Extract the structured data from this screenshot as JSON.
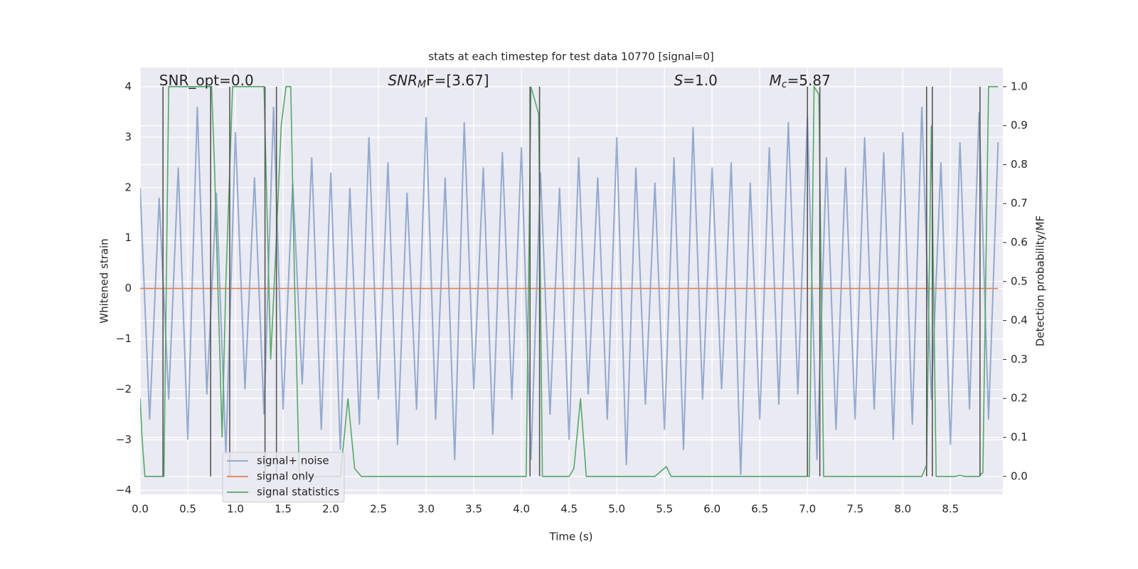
{
  "chart_data": {
    "type": "line",
    "title": "stats at each timestep for test data 10770 [signal=0]",
    "xlabel": "Time (s)",
    "ylabel": "Whitened strain",
    "y2label": "Detection probability/MF",
    "annotations": [
      {
        "base": "SNR_opt=0.0",
        "x": 0.2
      },
      {
        "base": "SNR",
        "sub": "M",
        "rest": "F=[3.67]",
        "x": 2.6
      },
      {
        "base": "S",
        "rest": "=1.0",
        "x": 5.6
      },
      {
        "base": "M",
        "sub": "c",
        "rest": "=5.87",
        "x": 6.6
      }
    ],
    "xlim": [
      0,
      9.05
    ],
    "ylim": [
      -4.08,
      4.38
    ],
    "y2lim": [
      -0.046,
      1.049
    ],
    "xticks": [
      {
        "value": 0,
        "label": "0.0"
      },
      0.5,
      {
        "value": 1,
        "label": "1.0"
      },
      1.5,
      {
        "value": 2,
        "label": "2.0"
      },
      2.5,
      {
        "value": 3,
        "label": "3.0"
      },
      3.5,
      {
        "value": 4,
        "label": "4.0"
      },
      4.5,
      {
        "value": 5,
        "label": "5.0"
      },
      5.5,
      {
        "value": 6,
        "label": "6.0"
      },
      6.5,
      {
        "value": 7,
        "label": "7.0"
      },
      7.5,
      {
        "value": 8,
        "label": "8.0"
      },
      8.5
    ],
    "yticks": [
      {
        "value": -4,
        "label": "−4"
      },
      {
        "value": -3,
        "label": "−3"
      },
      {
        "value": -2,
        "label": "−2"
      },
      {
        "value": -1,
        "label": "−1"
      },
      0,
      1,
      2,
      3,
      4
    ],
    "y2ticks": [
      {
        "value": 0,
        "label": "0.0"
      },
      0.1,
      0.2,
      0.3,
      0.4,
      0.5,
      0.6,
      0.7,
      0.8,
      0.9,
      {
        "value": 1,
        "label": "1.0"
      }
    ],
    "grid": true,
    "legend": "lower left",
    "series": [
      {
        "name": "signal+ noise",
        "color": "#4c72b0",
        "x": [
          0,
          0.1,
          0.2,
          0.3,
          0.4,
          0.5,
          0.6,
          0.7,
          0.8,
          0.9,
          1.0,
          1.1,
          1.2,
          1.3,
          1.4,
          1.5,
          1.6,
          1.7,
          1.8,
          1.9,
          2.0,
          2.1,
          2.2,
          2.3,
          2.4,
          2.5,
          2.6,
          2.7,
          2.8,
          2.9,
          3.0,
          3.1,
          3.2,
          3.3,
          3.4,
          3.5,
          3.6,
          3.7,
          3.8,
          3.9,
          4.0,
          4.1,
          4.2,
          4.3,
          4.4,
          4.5,
          4.6,
          4.7,
          4.8,
          4.9,
          5.0,
          5.1,
          5.2,
          5.3,
          5.4,
          5.5,
          5.6,
          5.7,
          5.8,
          5.9,
          6.0,
          6.1,
          6.2,
          6.3,
          6.4,
          6.5,
          6.6,
          6.7,
          6.8,
          6.9,
          7.0,
          7.1,
          7.2,
          7.3,
          7.4,
          7.5,
          7.6,
          7.7,
          7.8,
          7.9,
          8.0,
          8.1,
          8.2,
          8.3,
          8.4,
          8.5,
          8.6,
          8.7,
          8.8,
          8.9,
          9.0
        ],
        "values": [
          2.0,
          -2.6,
          1.8,
          -2.2,
          2.4,
          -3.0,
          3.6,
          -2.1,
          1.9,
          -3.3,
          3.1,
          -2.0,
          2.2,
          -2.5,
          3.6,
          -2.4,
          2.1,
          -1.9,
          2.6,
          -2.8,
          2.3,
          -3.2,
          2.0,
          -2.7,
          3.0,
          -2.2,
          2.5,
          -3.1,
          1.9,
          -2.4,
          3.4,
          -2.6,
          2.2,
          -3.4,
          3.3,
          -2.0,
          2.4,
          -2.9,
          2.7,
          -2.2,
          2.8,
          -3.4,
          2.3,
          -2.5,
          2.0,
          -3.0,
          2.6,
          -2.1,
          2.2,
          -2.6,
          3.0,
          -3.5,
          2.4,
          -2.3,
          2.1,
          -2.8,
          2.6,
          -3.2,
          3.2,
          -2.2,
          2.4,
          -2.0,
          2.5,
          -3.7,
          2.1,
          -2.6,
          2.8,
          -2.3,
          3.3,
          -2.1,
          3.4,
          -3.4,
          2.6,
          -2.8,
          2.4,
          -2.6,
          3.0,
          -2.4,
          2.7,
          -3.0,
          3.1,
          -2.7,
          3.6,
          -2.2,
          2.5,
          -3.1,
          2.9,
          -2.4,
          3.5,
          -2.6,
          2.9
        ]
      },
      {
        "name": "signal only",
        "color": "#dd8452",
        "x": [
          0,
          9.0
        ],
        "values": [
          0,
          0
        ]
      },
      {
        "name": "signal statistics",
        "color": "#55a868",
        "axis": "y2",
        "x": [
          0,
          0.02,
          0.05,
          0.25,
          0.3,
          0.7,
          0.75,
          0.78,
          0.86,
          0.9,
          0.97,
          1.3,
          1.37,
          1.42,
          1.48,
          1.53,
          1.58,
          1.62,
          1.67,
          2.1,
          2.18,
          2.25,
          2.32,
          4.05,
          4.1,
          4.18,
          4.22,
          4.5,
          4.55,
          4.62,
          4.68,
          5.4,
          5.47,
          5.52,
          5.57,
          7.02,
          7.07,
          7.12,
          7.17,
          8.2,
          8.25,
          8.3,
          8.35,
          8.55,
          8.6,
          8.65,
          8.8,
          8.84,
          8.9,
          9.0
        ],
        "values": [
          0.2,
          0.1,
          0.0,
          0.0,
          1.0,
          1.0,
          1.0,
          0.8,
          0.1,
          0.5,
          1.0,
          1.0,
          0.3,
          0.56,
          0.9,
          1.0,
          1.0,
          0.5,
          0.0,
          0.0,
          0.2,
          0.02,
          0.0,
          0.0,
          1.0,
          0.93,
          0.0,
          0.0,
          0.02,
          0.2,
          0.0,
          0.0,
          0.015,
          0.025,
          0.0,
          0.0,
          1.0,
          0.98,
          0.0,
          0.0,
          0.03,
          0.9,
          0.0,
          0.0,
          0.003,
          0.0,
          0.0,
          0.01,
          1.0,
          1.0
        ]
      }
    ],
    "event_lines": {
      "color": "#555555",
      "ymin": 0,
      "ymax": 1,
      "x": [
        0.24,
        0.74,
        0.94,
        1.31,
        1.43,
        4.09,
        4.19,
        7.0,
        7.13,
        8.25,
        8.31,
        8.81
      ]
    }
  }
}
